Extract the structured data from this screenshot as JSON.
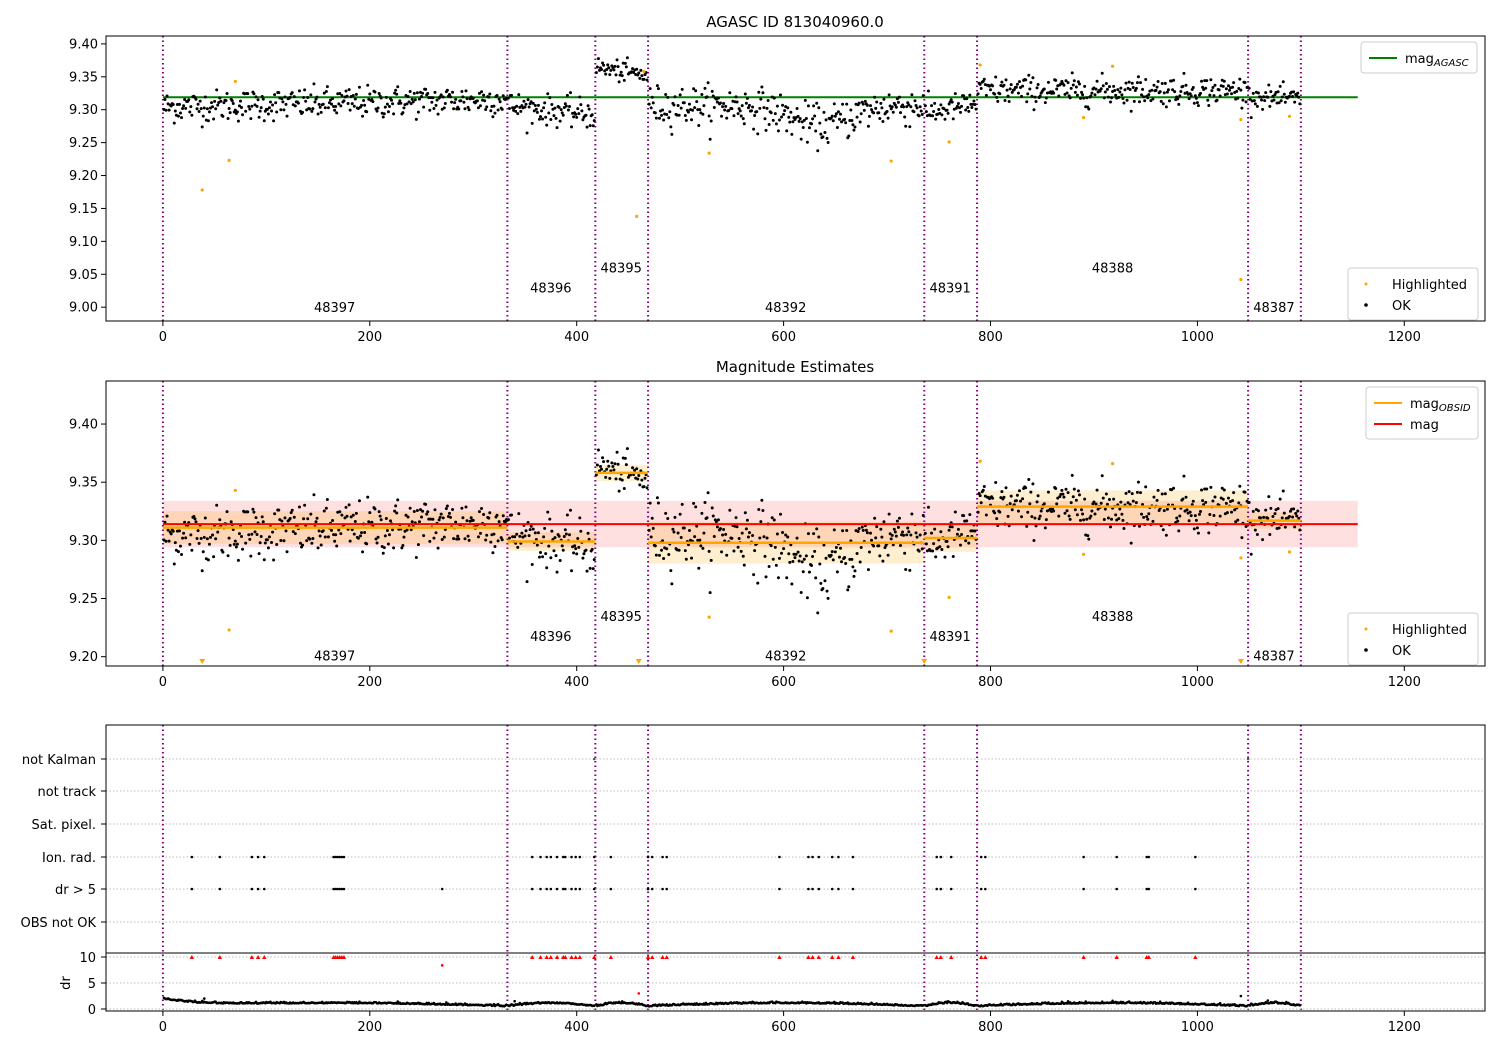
{
  "chart_data": [
    {
      "id": "p1",
      "type": "scatter",
      "title": "AGASC ID 813040960.0",
      "xlim": [
        -55,
        1278
      ],
      "ylim": [
        8.979,
        9.412
      ],
      "xticks": [
        "0",
        "200",
        "400",
        "600",
        "800",
        "1000",
        "1200"
      ],
      "yticks": [
        "9.00",
        "9.05",
        "9.10",
        "9.15",
        "9.20",
        "9.25",
        "9.30",
        "9.35",
        "9.40"
      ],
      "legend_top": {
        "position": "top-right",
        "entries": [
          {
            "label": "mag",
            "sub": "AGASC",
            "color": "#008000"
          }
        ]
      },
      "legend_bottom": {
        "position": "bottom-right",
        "entries": [
          {
            "label": "Highlighted",
            "color": "#ffa500"
          },
          {
            "label": "OK",
            "color": "#000000"
          }
        ]
      },
      "reference_line": {
        "y": 9.319,
        "x0": 0,
        "x1": 1155,
        "color": "#008000"
      },
      "obsid_boundaries": [
        0,
        333,
        418,
        469,
        736,
        787,
        1049,
        1100
      ],
      "obsid_labels": [
        {
          "text": "48397",
          "x": 166,
          "y": 9.0
        },
        {
          "text": "48396",
          "x": 375,
          "y": 9.03
        },
        {
          "text": "48395",
          "x": 443,
          "y": 9.06
        },
        {
          "text": "48392",
          "x": 602,
          "y": 9.0
        },
        {
          "text": "48391",
          "x": 761,
          "y": 9.03
        },
        {
          "text": "48388",
          "x": 918,
          "y": 9.06
        },
        {
          "text": "48387",
          "x": 1074,
          "y": 9.0
        }
      ],
      "segments": [
        {
          "x0": 0,
          "x1": 333,
          "mean": 9.31,
          "trend": 0.012,
          "sd": 0.012
        },
        {
          "x0": 333,
          "x1": 418,
          "mean": 9.299,
          "trend": -0.014,
          "sd": 0.011
        },
        {
          "x0": 418,
          "x1": 469,
          "mean": 9.358,
          "trend": -0.012,
          "sd": 0.008
        },
        {
          "x0": 469,
          "x1": 736,
          "mean": 9.297,
          "trend": 0.0,
          "sd": 0.015,
          "dip": 0.03
        },
        {
          "x0": 736,
          "x1": 787,
          "mean": 9.302,
          "trend": 0.015,
          "sd": 0.01
        },
        {
          "x0": 787,
          "x1": 1049,
          "mean": 9.329,
          "trend": 0.0,
          "sd": 0.011
        },
        {
          "x0": 1049,
          "x1": 1100,
          "mean": 9.318,
          "trend": -0.005,
          "sd": 0.008
        }
      ],
      "highlighted": [
        [
          38,
          9.178
        ],
        [
          64,
          9.223
        ],
        [
          70,
          9.343
        ],
        [
          458,
          9.138
        ],
        [
          465,
          9.358
        ],
        [
          528,
          9.234
        ],
        [
          704,
          9.222
        ],
        [
          760,
          9.251
        ],
        [
          790,
          9.368
        ],
        [
          890,
          9.288
        ],
        [
          918,
          9.366
        ],
        [
          1042,
          9.285
        ],
        [
          1042,
          9.042
        ],
        [
          1089,
          9.29
        ]
      ]
    },
    {
      "id": "p2",
      "type": "scatter",
      "title": "Magnitude Estimates",
      "xlim": [
        -55,
        1278
      ],
      "ylim": [
        9.192,
        9.437
      ],
      "xticks": [
        "0",
        "200",
        "400",
        "600",
        "800",
        "1000",
        "1200"
      ],
      "yticks": [
        "9.20",
        "9.25",
        "9.30",
        "9.35",
        "9.40"
      ],
      "legend_top": {
        "position": "top-right",
        "entries": [
          {
            "label": "mag",
            "sub": "OBSID",
            "color": "#ffa500"
          },
          {
            "label": "mag",
            "sub": "",
            "color": "#ff0000"
          }
        ]
      },
      "legend_bottom": {
        "position": "bottom-right",
        "entries": [
          {
            "label": "Highlighted",
            "color": "#ffa500"
          },
          {
            "label": "OK",
            "color": "#000000"
          }
        ]
      },
      "mag_line": {
        "y": 9.314,
        "band": [
          9.294,
          9.334
        ],
        "x0": 0,
        "x1": 1155,
        "color": "#ff0000"
      },
      "obsid_mags": [
        {
          "x0": 0,
          "x1": 333,
          "y": 9.311,
          "lo": 9.297,
          "hi": 9.325
        },
        {
          "x0": 333,
          "x1": 418,
          "y": 9.299,
          "lo": 9.291,
          "hi": 9.307
        },
        {
          "x0": 418,
          "x1": 469,
          "y": 9.358,
          "lo": 9.351,
          "hi": 9.365
        },
        {
          "x0": 469,
          "x1": 736,
          "y": 9.298,
          "lo": 9.28,
          "hi": 9.316
        },
        {
          "x0": 736,
          "x1": 787,
          "y": 9.302,
          "lo": 9.29,
          "hi": 9.314
        },
        {
          "x0": 787,
          "x1": 1049,
          "y": 9.329,
          "lo": 9.315,
          "hi": 9.343
        },
        {
          "x0": 1049,
          "x1": 1100,
          "y": 9.317,
          "lo": 9.31,
          "hi": 9.324
        }
      ],
      "obsid_labels": [
        {
          "text": "48397",
          "x": 166,
          "y": 9.201
        },
        {
          "text": "48396",
          "x": 375,
          "y": 9.218
        },
        {
          "text": "48395",
          "x": 443,
          "y": 9.235
        },
        {
          "text": "48392",
          "x": 602,
          "y": 9.201
        },
        {
          "text": "48391",
          "x": 761,
          "y": 9.218
        },
        {
          "text": "48388",
          "x": 918,
          "y": 9.235
        },
        {
          "text": "48387",
          "x": 1074,
          "y": 9.201
        }
      ],
      "offscale_markers": [
        38,
        460,
        736,
        1042
      ]
    },
    {
      "id": "p3",
      "type": "scatter",
      "title": "",
      "xlim": [
        -55,
        1278
      ],
      "flag_rows": [
        "not Kalman",
        "not track",
        "Sat. pixel.",
        "Ion. rad.",
        "dr > 5",
        "OBS not OK"
      ],
      "flag_xs": [
        28,
        55,
        86,
        92,
        98,
        165,
        167,
        169,
        171,
        173,
        175,
        357,
        365,
        371,
        375,
        381,
        387,
        389,
        395,
        399,
        403,
        417,
        433,
        469,
        473,
        483,
        487,
        596,
        624,
        628,
        634,
        647,
        653,
        667,
        748,
        752,
        762,
        791,
        795,
        890,
        922,
        951,
        953,
        998
      ],
      "dr_only_xs": [
        270
      ],
      "not_kalman_xs": [
        417,
        1049
      ],
      "dr_yticks": [
        "0",
        "5",
        "10"
      ],
      "dr_ylabel": "dr",
      "dr_ylim": [
        -0.6,
        10.7
      ],
      "dr_outliers": [
        [
          270,
          8.4
        ],
        [
          460,
          3.0
        ],
        [
          1042,
          2.5
        ],
        [
          40,
          2.0
        ],
        [
          340,
          1.5
        ]
      ],
      "xticks": [
        "0",
        "200",
        "400",
        "600",
        "800",
        "1000",
        "1200"
      ]
    }
  ]
}
